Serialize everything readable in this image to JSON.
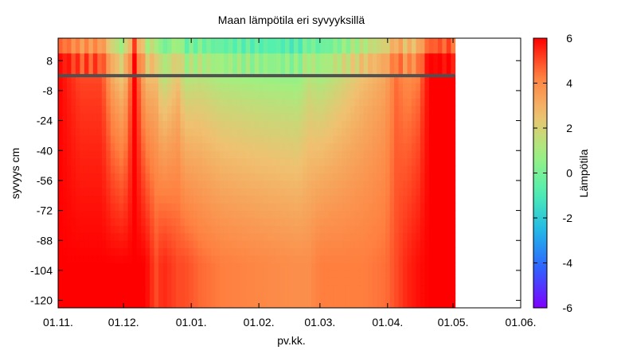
{
  "chart_data": {
    "type": "heatmap",
    "title": "Maan lämpötila eri syvyyksillä",
    "xlabel": "pv.kk.",
    "ylabel": "syvyys cm",
    "colorbar_label": "Lämpötila",
    "x_ticks": [
      "01.11.",
      "01.12.",
      "01.01.",
      "01.02.",
      "01.03.",
      "01.04.",
      "01.05.",
      "01.06."
    ],
    "x_tick_days": [
      0,
      30,
      61,
      92,
      120,
      151,
      181,
      212
    ],
    "xlim_days": [
      0,
      212
    ],
    "data_end_day": 182,
    "y_ticks": [
      8,
      -8,
      -24,
      -40,
      -56,
      -72,
      -88,
      -104,
      -120
    ],
    "ylim": [
      -124,
      20
    ],
    "colorbar_ticks": [
      -6,
      -4,
      -2,
      0,
      2,
      4,
      6
    ],
    "zlim": [
      -6,
      6
    ],
    "surface_level_cm": 0,
    "colormap": [
      "#7f00ff",
      "#3060ff",
      "#20b8e8",
      "#50f0b0",
      "#a0f080",
      "#f0c070",
      "#ff8040",
      "#ff0000"
    ],
    "surface_line_color": "#505050",
    "temperature_profile": {
      "day": [
        0,
        10,
        20,
        25,
        30,
        35,
        40,
        45,
        48,
        55,
        58,
        65,
        75,
        90,
        100,
        110,
        115,
        120,
        130,
        140,
        150,
        155,
        160,
        165,
        170,
        175,
        182
      ],
      "surface_C": [
        6,
        5,
        5,
        3,
        2,
        6,
        2.5,
        2.5,
        1,
        2.3,
        1,
        1.2,
        0.8,
        0.6,
        0.5,
        0.4,
        1.2,
        0.8,
        1.6,
        2.5,
        3.2,
        4.5,
        3.8,
        4.2,
        6,
        6,
        6
      ],
      "deep_C": [
        6,
        6,
        6,
        6,
        6,
        6,
        6,
        5,
        5.5,
        5,
        5,
        4.6,
        4.3,
        4.1,
        4.0,
        3.9,
        3.9,
        4.3,
        4.3,
        4.3,
        4.5,
        5,
        5.5,
        5.8,
        6,
        6,
        6
      ]
    }
  }
}
